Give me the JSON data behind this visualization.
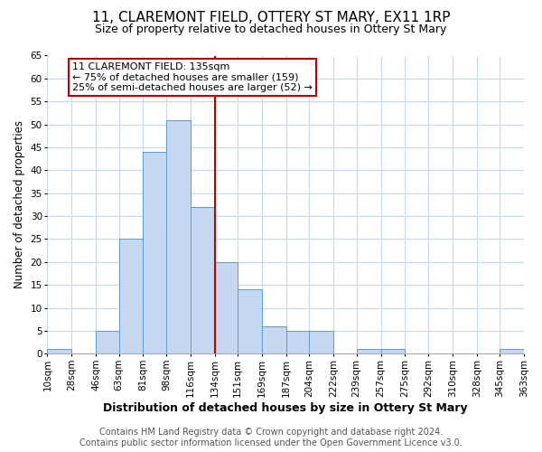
{
  "title": "11, CLAREMONT FIELD, OTTERY ST MARY, EX11 1RP",
  "subtitle": "Size of property relative to detached houses in Ottery St Mary",
  "xlabel": "Distribution of detached houses by size in Ottery St Mary",
  "ylabel": "Number of detached properties",
  "bin_edges": [
    10,
    28,
    46,
    63,
    81,
    98,
    116,
    134,
    151,
    169,
    187,
    204,
    222,
    239,
    257,
    275,
    292,
    310,
    328,
    345,
    363
  ],
  "bin_labels": [
    "10sqm",
    "28sqm",
    "46sqm",
    "63sqm",
    "81sqm",
    "98sqm",
    "116sqm",
    "134sqm",
    "151sqm",
    "169sqm",
    "187sqm",
    "204sqm",
    "222sqm",
    "239sqm",
    "257sqm",
    "275sqm",
    "292sqm",
    "310sqm",
    "328sqm",
    "345sqm",
    "363sqm"
  ],
  "bar_heights": [
    1,
    0,
    5,
    25,
    44,
    51,
    32,
    20,
    14,
    6,
    5,
    5,
    0,
    1,
    1,
    0,
    0,
    0,
    0,
    1
  ],
  "bar_color": "#c5d8f0",
  "bar_edge_color": "#5b9bd5",
  "ylim": [
    0,
    65
  ],
  "yticks": [
    0,
    5,
    10,
    15,
    20,
    25,
    30,
    35,
    40,
    45,
    50,
    55,
    60,
    65
  ],
  "property_line_x": 134,
  "property_line_color": "#c00000",
  "annotation_title": "11 CLAREMONT FIELD: 135sqm",
  "annotation_line1": "← 75% of detached houses are smaller (159)",
  "annotation_line2": "25% of semi-detached houses are larger (52) →",
  "annotation_box_color": "#c00000",
  "footer_line1": "Contains HM Land Registry data © Crown copyright and database right 2024.",
  "footer_line2": "Contains public sector information licensed under the Open Government Licence v3.0.",
  "background_color": "#ffffff",
  "grid_color": "#c5d8f0",
  "title_fontsize": 11,
  "subtitle_fontsize": 9,
  "xlabel_fontsize": 9,
  "ylabel_fontsize": 8.5,
  "tick_fontsize": 7.5,
  "footer_fontsize": 7,
  "annotation_fontsize": 8
}
